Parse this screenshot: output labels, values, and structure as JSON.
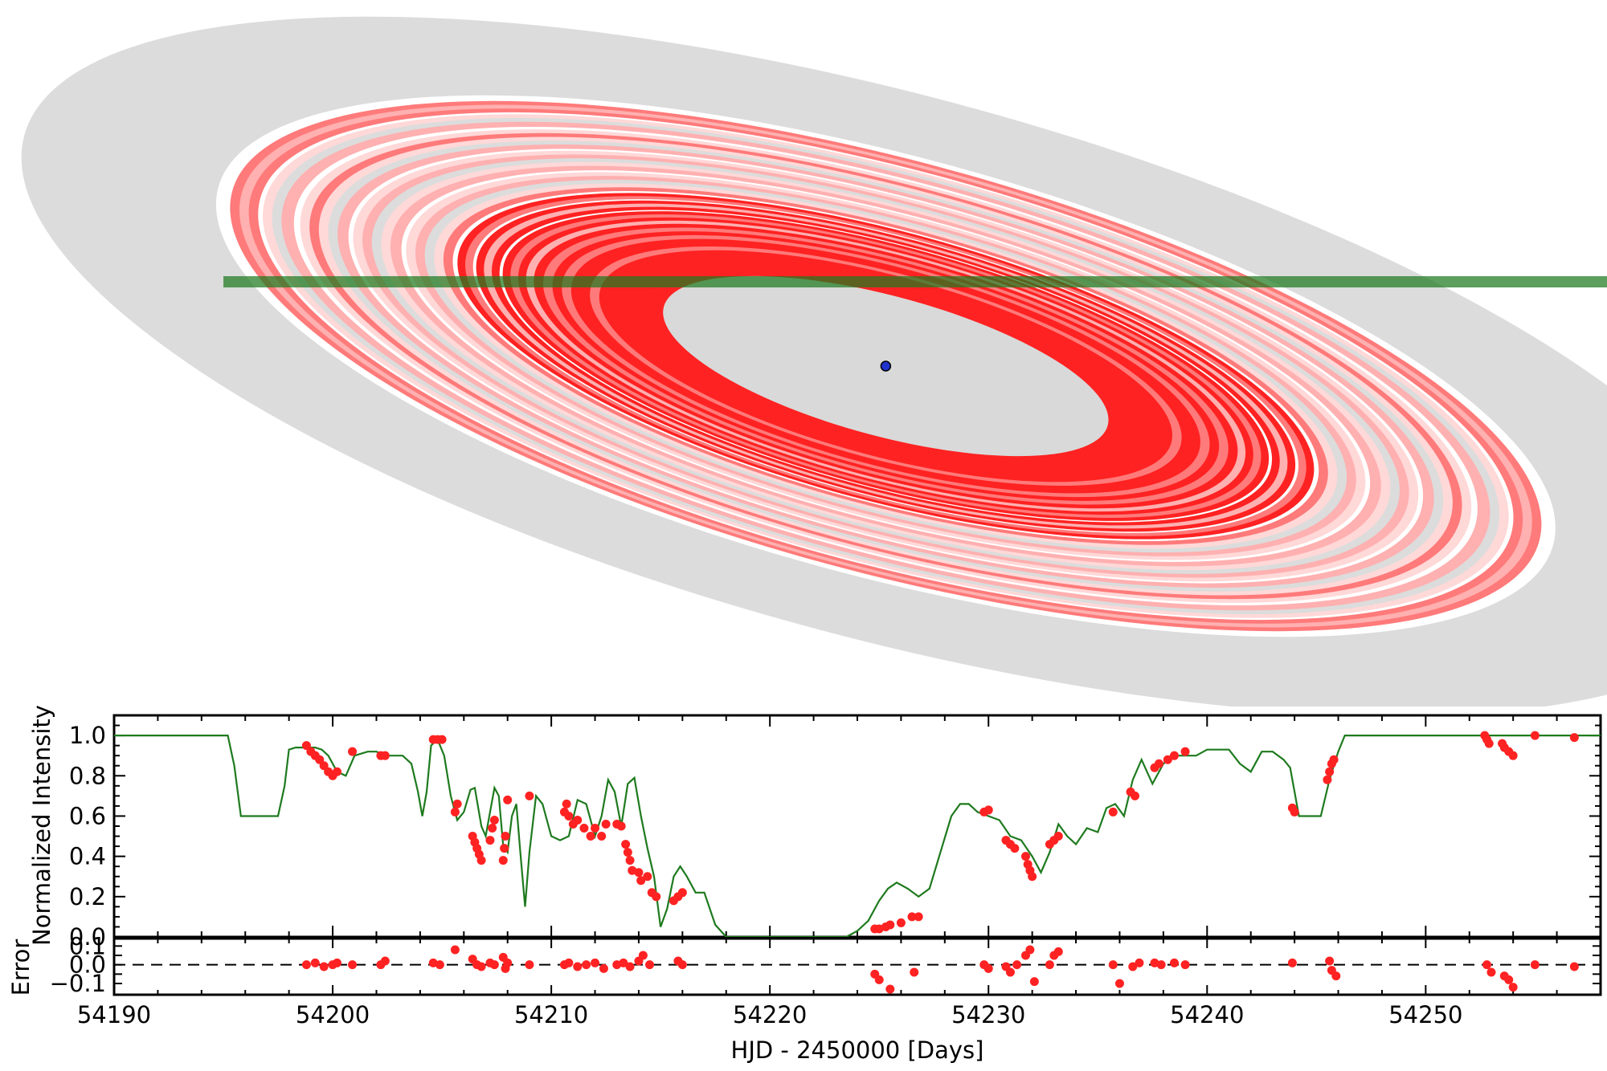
{
  "chart_data": [
    {
      "type": "ring-model",
      "center": {
        "x": 54225.3,
        "y": 0
      },
      "colors": {
        "background_disk": "#dcdcdc",
        "white_gap": "#ffffff",
        "ring_strong": "#ff2222",
        "ring_medium": "#ff7a7a",
        "ring_light": "#ffb0b0",
        "ring_pale": "#ffd8d8",
        "ring_grey": "#dcdcdc",
        "inner_cavity": "#d9d9d9",
        "star": "#2233cc",
        "trajectory": "#1e7a1e"
      },
      "trajectory_x_range": [
        54195.0,
        54262.0
      ]
    },
    {
      "type": "line",
      "xlim": [
        54190,
        54258
      ],
      "ylim": [
        0.0,
        1.1
      ],
      "xlabel": "",
      "ylabel": "Normalized Intensity",
      "xticks": [
        "54190",
        "54200",
        "54210",
        "54220",
        "54230",
        "54240",
        "54250"
      ],
      "yticks": [
        "0.0",
        "0.2",
        "0.4",
        "0.6",
        "0.8",
        "1.0"
      ],
      "series": [
        {
          "role": "model",
          "color": "#1e7a1e",
          "x": [
            54190.0,
            54195.2,
            54195.5,
            54195.8,
            54197.5,
            54197.8,
            54198.0,
            54198.3,
            54199.2,
            54199.5,
            54199.8,
            54200.2,
            54200.6,
            54201.0,
            54201.6,
            54202.0,
            54202.4,
            54202.8,
            54203.2,
            54203.6,
            54203.9,
            54204.1,
            54204.3,
            54204.5,
            54204.8,
            54205.1,
            54205.4,
            54205.7,
            54206.0,
            54206.3,
            54206.5,
            54206.8,
            54207.0,
            54207.2,
            54207.4,
            54207.6,
            54207.8,
            54208.0,
            54208.2,
            54208.4,
            54208.6,
            54208.8,
            54209.0,
            54209.3,
            54209.6,
            54210.0,
            54210.4,
            54210.8,
            54211.2,
            54211.6,
            54212.0,
            54212.3,
            54212.6,
            54212.9,
            54213.2,
            54213.5,
            54213.8,
            54214.1,
            54214.4,
            54214.7,
            54215.0,
            54215.3,
            54215.6,
            54215.9,
            54216.2,
            54216.6,
            54217.0,
            54217.5,
            54218.0,
            54223.5,
            54224.0,
            54224.5,
            54225.0,
            54225.4,
            54225.8,
            54226.3,
            54226.8,
            54227.3,
            54227.8,
            54228.3,
            54228.7,
            54229.1,
            54229.5,
            54230.0,
            54230.5,
            54231.0,
            54231.5,
            54232.0,
            54232.4,
            54232.8,
            54233.2,
            54233.6,
            54234.0,
            54234.5,
            54235.0,
            54235.4,
            54235.8,
            54236.2,
            54236.6,
            54237.0,
            54237.5,
            54238.0,
            54238.5,
            54239.0,
            54239.5,
            54240.0,
            54240.5,
            54241.0,
            54241.5,
            54242.0,
            54242.5,
            54243.0,
            54243.5,
            54243.8,
            54244.2,
            54245.2,
            54245.6,
            54246.0,
            54246.3,
            54258.0
          ],
          "y": [
            1.0,
            1.0,
            0.85,
            0.6,
            0.6,
            0.75,
            0.93,
            0.94,
            0.94,
            0.93,
            0.9,
            0.82,
            0.8,
            0.9,
            0.92,
            0.92,
            0.9,
            0.9,
            0.9,
            0.86,
            0.72,
            0.6,
            0.72,
            0.95,
            0.98,
            0.9,
            0.7,
            0.58,
            0.62,
            0.73,
            0.74,
            0.55,
            0.5,
            0.62,
            0.74,
            0.7,
            0.45,
            0.42,
            0.6,
            0.66,
            0.4,
            0.15,
            0.42,
            0.7,
            0.66,
            0.5,
            0.48,
            0.5,
            0.68,
            0.66,
            0.5,
            0.6,
            0.78,
            0.72,
            0.55,
            0.76,
            0.79,
            0.6,
            0.44,
            0.3,
            0.05,
            0.14,
            0.3,
            0.35,
            0.3,
            0.22,
            0.22,
            0.06,
            0.0,
            0.0,
            0.03,
            0.08,
            0.18,
            0.24,
            0.27,
            0.24,
            0.2,
            0.24,
            0.42,
            0.6,
            0.66,
            0.66,
            0.62,
            0.6,
            0.58,
            0.5,
            0.48,
            0.4,
            0.32,
            0.42,
            0.56,
            0.5,
            0.46,
            0.54,
            0.52,
            0.64,
            0.66,
            0.6,
            0.78,
            0.88,
            0.76,
            0.86,
            0.9,
            0.9,
            0.9,
            0.93,
            0.93,
            0.93,
            0.86,
            0.82,
            0.92,
            0.92,
            0.88,
            0.84,
            0.6,
            0.6,
            0.78,
            0.92,
            1.0,
            1.0
          ]
        },
        {
          "role": "observations",
          "color": "#ff2222",
          "x": [
            54198.8,
            54199.0,
            54199.2,
            54199.4,
            54199.6,
            54199.8,
            54200.0,
            54200.2,
            54200.9,
            54202.2,
            54202.4,
            54204.6,
            54204.8,
            54205.0,
            54205.6,
            54205.7,
            54206.4,
            54206.5,
            54206.6,
            54206.7,
            54206.8,
            54207.2,
            54207.3,
            54207.4,
            54207.8,
            54207.85,
            54207.9,
            54208.0,
            54209.0,
            54210.6,
            54210.7,
            54210.8,
            54211.0,
            54211.2,
            54211.5,
            54211.8,
            54212.0,
            54212.3,
            54212.5,
            54213.0,
            54213.2,
            54213.4,
            54213.5,
            54213.6,
            54213.7,
            54214.0,
            54214.1,
            54214.4,
            54214.6,
            54214.8,
            54215.6,
            54215.8,
            54216.0,
            54224.8,
            54225.0,
            54225.3,
            54225.5,
            54226.0,
            54226.5,
            54226.8,
            54229.8,
            54230.0,
            54230.8,
            54231.0,
            54231.2,
            54231.7,
            54231.8,
            54231.9,
            54232.0,
            54232.8,
            54233.0,
            54233.2,
            54235.7,
            54236.5,
            54236.7,
            54237.6,
            54237.8,
            54238.2,
            54238.5,
            54239.0,
            54243.9,
            54244.0,
            54245.5,
            54245.6,
            54245.7,
            54245.8,
            54252.7,
            54252.8,
            54252.9,
            54253.5,
            54253.6,
            54253.8,
            54254.0,
            54255.0,
            54256.8
          ],
          "y": [
            0.95,
            0.92,
            0.9,
            0.88,
            0.85,
            0.82,
            0.8,
            0.82,
            0.92,
            0.9,
            0.9,
            0.98,
            0.98,
            0.98,
            0.62,
            0.66,
            0.5,
            0.47,
            0.44,
            0.41,
            0.38,
            0.48,
            0.54,
            0.58,
            0.38,
            0.44,
            0.5,
            0.68,
            0.7,
            0.62,
            0.66,
            0.6,
            0.56,
            0.58,
            0.54,
            0.5,
            0.54,
            0.5,
            0.56,
            0.56,
            0.55,
            0.46,
            0.42,
            0.38,
            0.33,
            0.32,
            0.28,
            0.3,
            0.22,
            0.2,
            0.18,
            0.2,
            0.22,
            0.04,
            0.04,
            0.05,
            0.06,
            0.07,
            0.1,
            0.1,
            0.62,
            0.63,
            0.48,
            0.46,
            0.44,
            0.4,
            0.36,
            0.33,
            0.3,
            0.46,
            0.48,
            0.5,
            0.62,
            0.72,
            0.7,
            0.84,
            0.86,
            0.88,
            0.9,
            0.92,
            0.64,
            0.62,
            0.78,
            0.82,
            0.86,
            0.88,
            1.0,
            0.98,
            0.96,
            0.96,
            0.94,
            0.92,
            0.9,
            1.0,
            0.99
          ]
        }
      ]
    },
    {
      "type": "scatter",
      "xlim": [
        54190,
        54258
      ],
      "ylim": [
        -0.16,
        0.14
      ],
      "xlabel": "HJD - 2450000 [Days]",
      "ylabel": "Error",
      "xticks": [
        "54190",
        "54200",
        "54210",
        "54220",
        "54230",
        "54240",
        "54250"
      ],
      "yticks": [
        "0.1",
        "0.0",
        "−0.1"
      ],
      "reference_line": 0.0,
      "series": [
        {
          "role": "residuals",
          "color": "#ff2222",
          "x": [
            54198.8,
            54199.2,
            54199.6,
            54200.0,
            54200.2,
            54200.9,
            54202.2,
            54202.4,
            54204.6,
            54204.9,
            54205.6,
            54206.4,
            54206.6,
            54206.8,
            54207.2,
            54207.4,
            54207.8,
            54207.9,
            54208.0,
            54209.0,
            54210.6,
            54210.8,
            54211.2,
            54211.6,
            54212.0,
            54212.4,
            54213.0,
            54213.3,
            54213.6,
            54214.0,
            54214.2,
            54214.5,
            54215.8,
            54216.0,
            54224.8,
            54225.0,
            54225.5,
            54226.6,
            54229.8,
            54230.0,
            54230.8,
            54231.0,
            54231.3,
            54231.7,
            54231.9,
            54232.1,
            54232.8,
            54233.0,
            54233.2,
            54235.7,
            54236.0,
            54236.6,
            54236.9,
            54237.6,
            54237.9,
            54238.5,
            54239.0,
            54243.9,
            54245.6,
            54245.7,
            54245.9,
            54252.8,
            54253.0,
            54253.6,
            54253.8,
            54254.0,
            54255.0,
            54256.8
          ],
          "y": [
            0.0,
            0.01,
            -0.01,
            0.0,
            0.01,
            0.0,
            0.0,
            0.02,
            0.01,
            0.0,
            0.08,
            0.03,
            0.0,
            -0.01,
            0.01,
            0.0,
            0.04,
            -0.02,
            0.01,
            0.0,
            0.0,
            0.01,
            -0.01,
            0.0,
            0.01,
            -0.02,
            0.0,
            0.01,
            -0.01,
            0.02,
            0.05,
            0.0,
            0.02,
            0.0,
            -0.05,
            -0.08,
            -0.13,
            -0.04,
            0.0,
            -0.02,
            -0.01,
            -0.04,
            0.0,
            0.05,
            0.08,
            -0.09,
            0.0,
            0.05,
            0.07,
            0.0,
            -0.1,
            -0.01,
            0.01,
            0.01,
            0.0,
            0.01,
            0.0,
            0.01,
            0.02,
            -0.03,
            -0.06,
            0.0,
            -0.04,
            -0.06,
            -0.08,
            -0.12,
            0.0,
            -0.01
          ]
        }
      ]
    }
  ]
}
